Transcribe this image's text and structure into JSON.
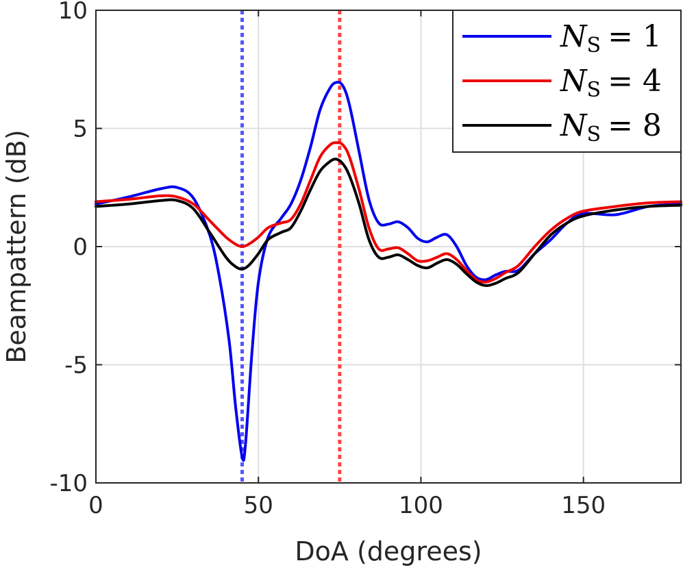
{
  "chart_data": {
    "type": "line",
    "title": "",
    "xlabel": "DoA (degrees)",
    "ylabel": "Beampattern (dB)",
    "xlim": [
      0,
      180
    ],
    "ylim": [
      -10,
      10
    ],
    "xticks": [
      0,
      50,
      100,
      150
    ],
    "yticks": [
      -10,
      -5,
      0,
      5,
      10
    ],
    "xtick_labels": [
      "0",
      "50",
      "100",
      "150"
    ],
    "ytick_labels": [
      "-10",
      "-5",
      "0",
      "5",
      "10"
    ],
    "grid": true,
    "legend_position": "top-right",
    "reference_lines": [
      {
        "x": 45,
        "color": "#5555ff",
        "style": "dotted"
      },
      {
        "x": 75,
        "color": "#ff4444",
        "style": "dotted"
      }
    ],
    "series": [
      {
        "name": "N_S = 1",
        "legend_var": "N",
        "legend_sub": "S",
        "legend_op": "= 1",
        "color": "#0000ee",
        "x": [
          0,
          10,
          20,
          25,
          30,
          35,
          38,
          41,
          43,
          45,
          46,
          48,
          50,
          53,
          57,
          60,
          63,
          66,
          69,
          72,
          74,
          76,
          78,
          81,
          84,
          87,
          90,
          93,
          96,
          99,
          102,
          105,
          108,
          111,
          114,
          117,
          120,
          123,
          126,
          130,
          135,
          140,
          145,
          150,
          160,
          170,
          180
        ],
        "y": [
          1.8,
          2.1,
          2.45,
          2.5,
          2.05,
          0.5,
          -1.3,
          -4.0,
          -6.8,
          -8.9,
          -8.4,
          -4.5,
          -1.5,
          0.4,
          1.2,
          1.8,
          2.8,
          4.2,
          5.8,
          6.7,
          6.95,
          6.8,
          6.0,
          4.0,
          2.0,
          1.0,
          0.95,
          1.05,
          0.8,
          0.35,
          0.2,
          0.4,
          0.5,
          0.0,
          -0.8,
          -1.3,
          -1.4,
          -1.2,
          -1.05,
          -1.0,
          -0.3,
          0.3,
          1.0,
          1.4,
          1.35,
          1.7,
          1.8
        ]
      },
      {
        "name": "N_S = 4",
        "legend_var": "N",
        "legend_sub": "S",
        "legend_op": "= 4",
        "color": "#ee0000",
        "x": [
          0,
          10,
          20,
          25,
          30,
          35,
          40,
          43,
          45,
          47,
          50,
          53,
          57,
          60,
          63,
          66,
          69,
          72,
          74,
          76,
          78,
          81,
          84,
          87,
          90,
          93,
          96,
          99,
          102,
          105,
          108,
          111,
          114,
          117,
          120,
          123,
          126,
          130,
          135,
          140,
          145,
          150,
          160,
          170,
          180
        ],
        "y": [
          1.9,
          2.0,
          2.15,
          2.1,
          1.8,
          1.1,
          0.4,
          0.1,
          0.0,
          0.1,
          0.4,
          0.8,
          1.0,
          1.15,
          1.8,
          2.8,
          3.8,
          4.3,
          4.4,
          4.3,
          3.8,
          2.4,
          0.8,
          -0.1,
          -0.1,
          -0.05,
          -0.3,
          -0.6,
          -0.6,
          -0.45,
          -0.3,
          -0.55,
          -1.0,
          -1.4,
          -1.5,
          -1.35,
          -1.1,
          -0.8,
          0.0,
          0.7,
          1.2,
          1.5,
          1.7,
          1.85,
          1.9
        ]
      },
      {
        "name": "N_S = 8",
        "legend_var": "N",
        "legend_sub": "S",
        "legend_op": "= 8",
        "color": "#000000",
        "x": [
          0,
          10,
          20,
          25,
          30,
          35,
          40,
          43,
          45,
          47,
          50,
          53,
          57,
          60,
          63,
          66,
          69,
          72,
          74,
          76,
          78,
          81,
          84,
          87,
          90,
          93,
          96,
          99,
          102,
          105,
          108,
          111,
          114,
          117,
          120,
          123,
          126,
          130,
          135,
          140,
          145,
          150,
          160,
          170,
          180
        ],
        "y": [
          1.7,
          1.8,
          1.95,
          1.95,
          1.6,
          0.6,
          -0.45,
          -0.85,
          -0.95,
          -0.8,
          -0.3,
          0.3,
          0.6,
          0.8,
          1.5,
          2.4,
          3.2,
          3.6,
          3.7,
          3.5,
          3.0,
          1.8,
          0.3,
          -0.45,
          -0.45,
          -0.35,
          -0.55,
          -0.8,
          -0.9,
          -0.7,
          -0.55,
          -0.75,
          -1.15,
          -1.5,
          -1.65,
          -1.55,
          -1.35,
          -1.1,
          -0.3,
          0.5,
          1.0,
          1.3,
          1.55,
          1.7,
          1.75
        ]
      }
    ]
  }
}
